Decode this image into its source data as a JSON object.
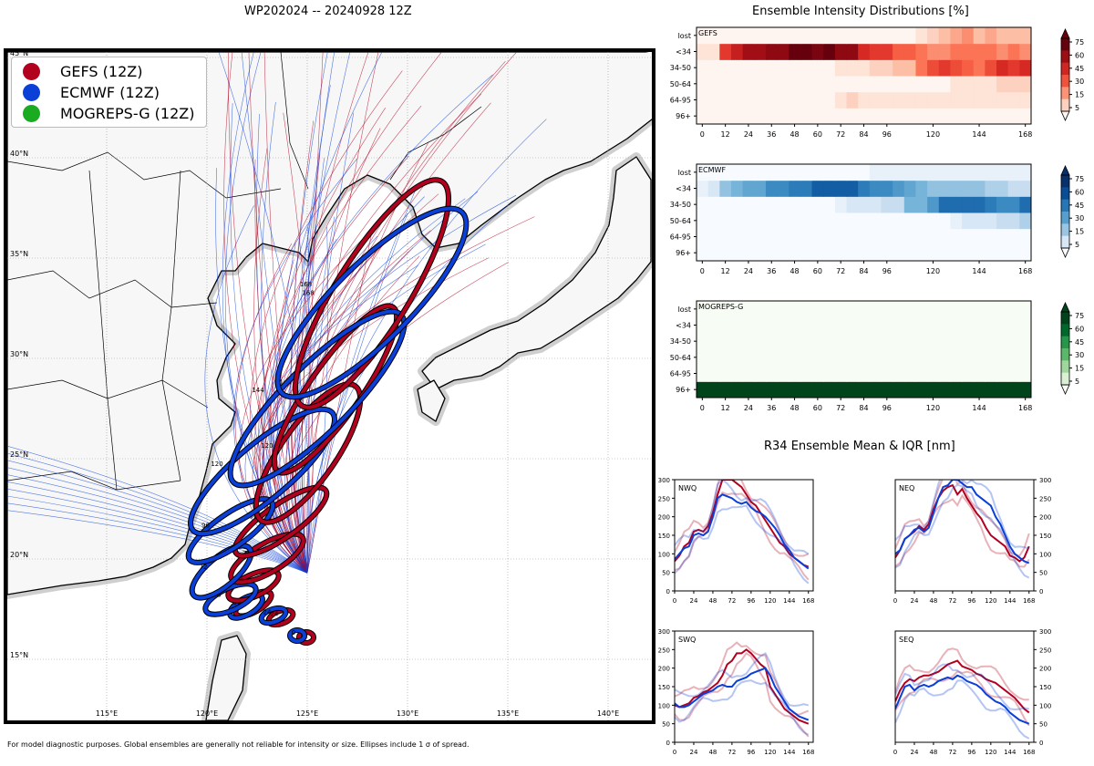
{
  "map": {
    "title": "WP202024 -- 20240928 12Z",
    "footer": "For model diagnostic purposes. Global ensembles are generally not reliable for intensity or size. Ellipses include 1 σ of spread.",
    "legend": [
      {
        "label": "GEFS (12Z)",
        "color": "#b2001f"
      },
      {
        "label": "ECMWF (12Z)",
        "color": "#0a3fd8"
      },
      {
        "label": "MOGREPS-G (12Z)",
        "color": "#1aab22"
      }
    ],
    "lon_labels": [
      "115°E",
      "120°E",
      "125°E",
      "130°E",
      "135°E",
      "140°E"
    ],
    "lat_labels": [
      "45°N",
      "40°N",
      "35°N",
      "30°N",
      "25°N",
      "20°N",
      "15°N"
    ],
    "colors": {
      "gefs": "#b2001f",
      "ecmwf": "#0a3fd8",
      "mogreps": "#1aab22",
      "land": "#f7f7f7",
      "coast_halo": "#cfcfcf"
    }
  },
  "chart_data": [
    {
      "type": "heatmap",
      "title": "Ensemble Intensity Distributions [%]",
      "panel": "GEFS",
      "rows": [
        "96+",
        "64-95",
        "50-64",
        "34-50",
        "<34",
        "lost"
      ],
      "x_ticks": [
        "0",
        "12",
        "24",
        "36",
        "48",
        "60",
        "72",
        "84",
        "96",
        "120",
        "144",
        "168"
      ],
      "x_range": [
        0,
        174
      ],
      "colorbar_ticks": [
        "75",
        "60",
        "45",
        "30",
        "15",
        "5"
      ],
      "colormap": "Reds",
      "values": [
        [
          0,
          0,
          0,
          0,
          0,
          0,
          0,
          0,
          0,
          0,
          0,
          0,
          0,
          0,
          0,
          0,
          0,
          0,
          0,
          0,
          0,
          0,
          0,
          0,
          0,
          0,
          0,
          0,
          0
        ],
        [
          0,
          0,
          0,
          0,
          0,
          0,
          0,
          0,
          0,
          0,
          0,
          0,
          5,
          10,
          5,
          5,
          5,
          5,
          5,
          5,
          5,
          5,
          5,
          5,
          5,
          5,
          5,
          5,
          5
        ],
        [
          0,
          0,
          0,
          0,
          0,
          0,
          0,
          0,
          0,
          0,
          0,
          0,
          0,
          0,
          0,
          0,
          0,
          0,
          0,
          0,
          0,
          0,
          5,
          5,
          5,
          5,
          10,
          10,
          10
        ],
        [
          0,
          0,
          0,
          0,
          0,
          0,
          0,
          0,
          0,
          0,
          0,
          0,
          5,
          5,
          5,
          10,
          10,
          15,
          15,
          30,
          40,
          45,
          40,
          35,
          30,
          40,
          50,
          45,
          50
        ],
        [
          5,
          5,
          45,
          55,
          65,
          65,
          70,
          70,
          80,
          80,
          75,
          80,
          70,
          70,
          50,
          45,
          45,
          35,
          35,
          30,
          25,
          25,
          30,
          30,
          30,
          30,
          25,
          30,
          25
        ],
        [
          0,
          0,
          0,
          0,
          0,
          0,
          0,
          0,
          0,
          0,
          0,
          0,
          0,
          0,
          0,
          0,
          0,
          0,
          0,
          5,
          10,
          15,
          20,
          25,
          15,
          20,
          15,
          15,
          15
        ]
      ]
    },
    {
      "type": "heatmap",
      "panel": "ECMWF",
      "rows": [
        "96+",
        "64-95",
        "50-64",
        "34-50",
        "<34",
        "lost"
      ],
      "x_ticks": [
        "0",
        "12",
        "24",
        "36",
        "48",
        "60",
        "72",
        "84",
        "96",
        "120",
        "144",
        "168"
      ],
      "x_range": [
        0,
        174
      ],
      "colorbar_ticks": [
        "75",
        "60",
        "45",
        "30",
        "15",
        "5"
      ],
      "colormap": "Blues",
      "values": [
        [
          0,
          0,
          0,
          0,
          0,
          0,
          0,
          0,
          0,
          0,
          0,
          0,
          0,
          0,
          0,
          0,
          0,
          0,
          0,
          0,
          0,
          0,
          0,
          0,
          0,
          0,
          0,
          0,
          0
        ],
        [
          0,
          0,
          0,
          0,
          0,
          0,
          0,
          0,
          0,
          0,
          0,
          0,
          0,
          0,
          0,
          0,
          0,
          0,
          0,
          0,
          0,
          0,
          0,
          0,
          0,
          0,
          0,
          0,
          0
        ],
        [
          0,
          0,
          0,
          0,
          0,
          0,
          0,
          0,
          0,
          0,
          0,
          0,
          0,
          0,
          0,
          0,
          0,
          0,
          0,
          0,
          0,
          0,
          5,
          10,
          10,
          10,
          15,
          15,
          20
        ],
        [
          0,
          0,
          0,
          0,
          0,
          0,
          0,
          0,
          0,
          0,
          0,
          0,
          5,
          10,
          10,
          10,
          15,
          15,
          30,
          30,
          40,
          55,
          55,
          55,
          55,
          50,
          45,
          45,
          55
        ],
        [
          5,
          10,
          25,
          30,
          35,
          35,
          45,
          45,
          50,
          50,
          60,
          60,
          60,
          60,
          50,
          45,
          45,
          40,
          35,
          30,
          25,
          25,
          25,
          25,
          25,
          20,
          20,
          15,
          15
        ],
        [
          0,
          0,
          0,
          0,
          0,
          0,
          0,
          0,
          0,
          0,
          0,
          0,
          0,
          0,
          0,
          5,
          5,
          5,
          5,
          5,
          5,
          5,
          5,
          5,
          5,
          5,
          5,
          5,
          5
        ]
      ]
    },
    {
      "type": "heatmap",
      "panel": "MOGREPS-G",
      "rows": [
        "96+",
        "64-95",
        "50-64",
        "34-50",
        "<34",
        "lost"
      ],
      "x_ticks": [
        "0",
        "12",
        "24",
        "36",
        "48",
        "60",
        "72",
        "84",
        "96",
        "120",
        "144",
        "168"
      ],
      "x_range": [
        0,
        174
      ],
      "colorbar_ticks": [
        "75",
        "60",
        "45",
        "30",
        "15",
        "5"
      ],
      "colormap": "Greens",
      "values": [
        [
          100,
          100,
          100,
          100,
          100,
          100,
          100,
          100,
          100,
          100,
          100,
          100,
          100,
          100,
          100,
          100,
          100,
          100,
          100,
          100,
          100,
          100,
          100,
          100,
          100,
          100,
          100,
          100,
          100
        ],
        [
          0,
          0,
          0,
          0,
          0,
          0,
          0,
          0,
          0,
          0,
          0,
          0,
          0,
          0,
          0,
          0,
          0,
          0,
          0,
          0,
          0,
          0,
          0,
          0,
          0,
          0,
          0,
          0,
          0
        ],
        [
          0,
          0,
          0,
          0,
          0,
          0,
          0,
          0,
          0,
          0,
          0,
          0,
          0,
          0,
          0,
          0,
          0,
          0,
          0,
          0,
          0,
          0,
          0,
          0,
          0,
          0,
          0,
          0,
          0
        ],
        [
          0,
          0,
          0,
          0,
          0,
          0,
          0,
          0,
          0,
          0,
          0,
          0,
          0,
          0,
          0,
          0,
          0,
          0,
          0,
          0,
          0,
          0,
          0,
          0,
          0,
          0,
          0,
          0,
          0
        ],
        [
          0,
          0,
          0,
          0,
          0,
          0,
          0,
          0,
          0,
          0,
          0,
          0,
          0,
          0,
          0,
          0,
          0,
          0,
          0,
          0,
          0,
          0,
          0,
          0,
          0,
          0,
          0,
          0,
          0
        ],
        [
          0,
          0,
          0,
          0,
          0,
          0,
          0,
          0,
          0,
          0,
          0,
          0,
          0,
          0,
          0,
          0,
          0,
          0,
          0,
          0,
          0,
          0,
          0,
          0,
          0,
          0,
          0,
          0,
          0
        ]
      ]
    },
    {
      "type": "line",
      "title": "R34 Ensemble Mean & IQR [nm]",
      "x": [
        0,
        6,
        12,
        18,
        24,
        30,
        36,
        42,
        48,
        54,
        60,
        66,
        72,
        78,
        84,
        90,
        96,
        102,
        108,
        114,
        120,
        126,
        132,
        138,
        144,
        150,
        156,
        162,
        168
      ],
      "x_ticks": [
        "0",
        "24",
        "48",
        "72",
        "96",
        "120",
        "144",
        "168"
      ],
      "y_ticks": [
        "0",
        "50",
        "100",
        "150",
        "200",
        "250",
        "300"
      ],
      "xlim": [
        0,
        174
      ],
      "ylim": [
        0,
        300
      ],
      "quadrants": [
        {
          "name": "NWQ",
          "series": [
            {
              "name": "GEFS mean",
              "values": [
                80,
                95,
                120,
                130,
                160,
                165,
                160,
                175,
                210,
                260,
                300,
                300,
                300,
                290,
                280,
                260,
                240,
                230,
                210,
                190,
                170,
                150,
                130,
                120,
                100,
                90,
                80,
                70,
                65
              ]
            },
            {
              "name": "ECMWF mean",
              "values": [
                85,
                100,
                115,
                120,
                150,
                155,
                150,
                160,
                200,
                250,
                260,
                255,
                250,
                240,
                235,
                240,
                225,
                215,
                210,
                200,
                185,
                170,
                150,
                125,
                110,
                90,
                80,
                70,
                60
              ]
            }
          ]
        },
        {
          "name": "NEQ",
          "series": [
            {
              "name": "GEFS mean",
              "values": [
                90,
                110,
                140,
                150,
                160,
                175,
                165,
                180,
                220,
                250,
                270,
                280,
                285,
                260,
                275,
                250,
                230,
                210,
                195,
                170,
                150,
                140,
                130,
                120,
                95,
                90,
                80,
                90,
                120
              ]
            },
            {
              "name": "ECMWF mean",
              "values": [
                100,
                110,
                140,
                150,
                165,
                170,
                160,
                170,
                210,
                250,
                280,
                285,
                300,
                300,
                290,
                280,
                280,
                260,
                250,
                240,
                230,
                200,
                180,
                150,
                120,
                100,
                90,
                80,
                75
              ]
            }
          ]
        },
        {
          "name": "SWQ",
          "series": [
            {
              "name": "GEFS mean",
              "values": [
                100,
                95,
                100,
                105,
                120,
                125,
                135,
                140,
                150,
                160,
                180,
                210,
                220,
                240,
                240,
                250,
                240,
                225,
                210,
                200,
                150,
                130,
                110,
                90,
                80,
                70,
                60,
                55,
                50
              ]
            },
            {
              "name": "ECMWF mean",
              "values": [
                105,
                95,
                95,
                100,
                110,
                120,
                130,
                135,
                140,
                150,
                155,
                150,
                150,
                165,
                170,
                175,
                185,
                190,
                195,
                200,
                180,
                150,
                130,
                110,
                90,
                80,
                70,
                65,
                60
              ]
            }
          ]
        },
        {
          "name": "SEQ",
          "series": [
            {
              "name": "GEFS mean",
              "values": [
                110,
                140,
                160,
                170,
                165,
                175,
                180,
                180,
                185,
                190,
                200,
                210,
                215,
                220,
                205,
                200,
                195,
                185,
                180,
                170,
                165,
                160,
                150,
                140,
                130,
                120,
                105,
                90,
                80
              ]
            },
            {
              "name": "ECMWF mean",
              "values": [
                90,
                120,
                150,
                155,
                140,
                150,
                155,
                150,
                155,
                165,
                170,
                175,
                170,
                180,
                175,
                165,
                160,
                155,
                145,
                130,
                120,
                110,
                105,
                95,
                80,
                70,
                60,
                55,
                50
              ]
            }
          ]
        }
      ]
    }
  ]
}
